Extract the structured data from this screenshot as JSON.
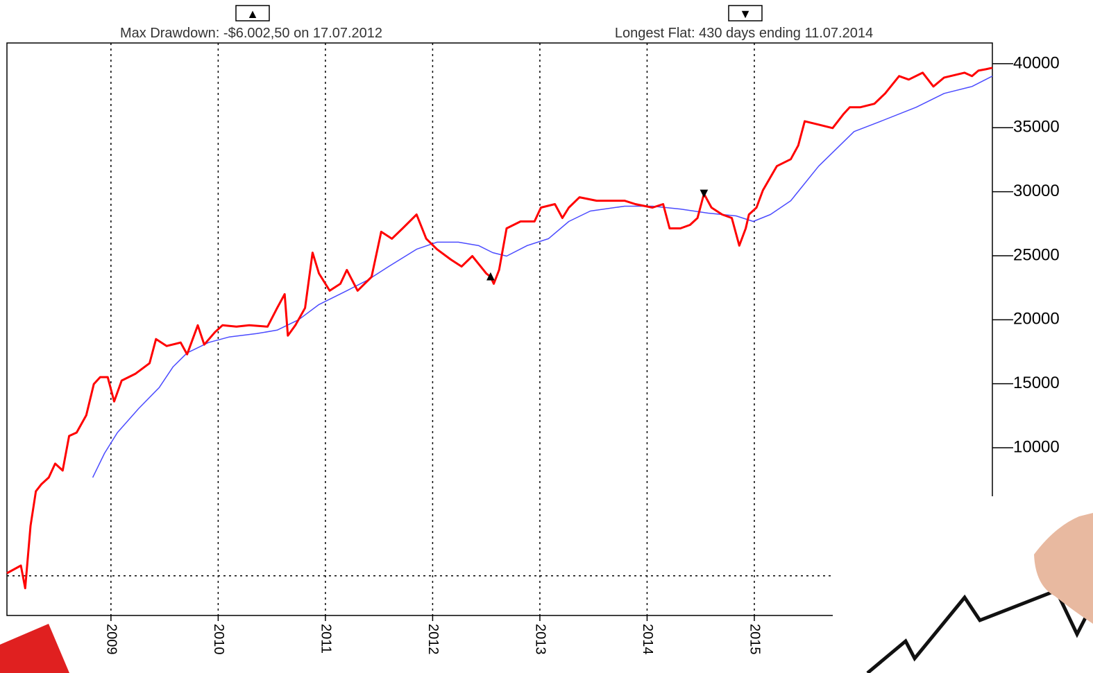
{
  "chart_data": {
    "type": "line",
    "annotations": [
      "Max Drawdown: -$6.002,50 on 17.07.2012",
      "Longest Flat: 430 days ending 11.07.2014"
    ],
    "markers": [
      {
        "symbol": "▲",
        "x": 2012.54,
        "y": 23350,
        "color": "#000000"
      },
      {
        "symbol": "▼",
        "x": 2014.53,
        "y": 29840,
        "color": "#000000"
      }
    ],
    "series": [
      {
        "color": "#ff0000",
        "width": 3,
        "x": [
          2008.03,
          2008.16,
          2008.2,
          2008.25,
          2008.3,
          2008.35,
          2008.42,
          2008.48,
          2008.55,
          2008.61,
          2008.68,
          2008.77,
          2008.84,
          2008.9,
          2008.97,
          2009.03,
          2009.1,
          2009.23,
          2009.36,
          2009.42,
          2009.52,
          2009.65,
          2009.71,
          2009.81,
          2009.87,
          2009.97,
          2010.04,
          2010.17,
          2010.29,
          2010.46,
          2010.55,
          2010.62,
          2010.65,
          2010.72,
          2010.81,
          2010.88,
          2010.94,
          2011.04,
          2011.14,
          2011.2,
          2011.3,
          2011.43,
          2011.52,
          2011.62,
          2011.72,
          2011.85,
          2011.94,
          2012.04,
          2012.17,
          2012.27,
          2012.37,
          2012.5,
          2012.54,
          2012.57,
          2012.62,
          2012.69,
          2012.82,
          2012.95,
          2013.01,
          2013.14,
          2013.21,
          2013.27,
          2013.37,
          2013.53,
          2013.79,
          2013.89,
          2014.05,
          2014.15,
          2014.21,
          2014.31,
          2014.4,
          2014.47,
          2014.53,
          2014.6,
          2014.7,
          2014.79,
          2014.86,
          2014.92,
          2014.95,
          2015.02,
          2015.08,
          2015.21,
          2015.34,
          2015.41,
          2015.47,
          2015.6,
          2015.73,
          2015.83,
          2015.89,
          2015.99,
          2016.12,
          2016.22,
          2016.35,
          2016.44,
          2016.57,
          2016.67,
          2016.77,
          2016.96,
          2017.03,
          2017.09,
          2017.16,
          2017.22
        ],
        "values": [
          200,
          800,
          -970,
          3900,
          6600,
          7140,
          7680,
          8760,
          8220,
          10920,
          11190,
          12540,
          14980,
          15520,
          15520,
          13620,
          15250,
          15790,
          16600,
          18490,
          17950,
          18220,
          17300,
          19570,
          18060,
          19030,
          19570,
          19460,
          19570,
          19460,
          20920,
          22000,
          18760,
          19570,
          20920,
          25240,
          23620,
          22270,
          22810,
          23890,
          22270,
          23350,
          26870,
          26330,
          27140,
          28220,
          26330,
          25510,
          24700,
          24160,
          24970,
          23620,
          23350,
          22810,
          23890,
          27140,
          27680,
          27680,
          28760,
          29030,
          27950,
          28760,
          29570,
          29300,
          29300,
          29030,
          28760,
          29030,
          27140,
          27140,
          27410,
          27950,
          29840,
          28760,
          28220,
          27950,
          25790,
          27140,
          28220,
          28760,
          30110,
          32000,
          32540,
          33620,
          35510,
          35240,
          34970,
          36050,
          36600,
          36600,
          36870,
          37680,
          39030,
          38760,
          39300,
          38220,
          38920,
          39300,
          39030,
          39460,
          39570,
          39680
        ]
      },
      {
        "color": "#4b4bff",
        "width": 1.5,
        "x": [
          2008.83,
          2008.94,
          2009.06,
          2009.26,
          2009.45,
          2009.58,
          2009.71,
          2009.91,
          2010.1,
          2010.36,
          2010.55,
          2010.75,
          2010.94,
          2011.2,
          2011.39,
          2011.59,
          2011.85,
          2012.04,
          2012.24,
          2012.43,
          2012.56,
          2012.69,
          2012.88,
          2013.08,
          2013.27,
          2013.47,
          2013.79,
          2014.05,
          2014.31,
          2014.57,
          2014.83,
          2014.99,
          2015.15,
          2015.34,
          2015.6,
          2015.93,
          2016.18,
          2016.51,
          2016.77,
          2017.03,
          2017.22
        ],
        "values": [
          7680,
          9570,
          11190,
          13080,
          14700,
          16330,
          17410,
          18220,
          18650,
          18920,
          19190,
          20000,
          21190,
          22270,
          23080,
          24160,
          25510,
          26060,
          26060,
          25790,
          25240,
          24970,
          25790,
          26330,
          27680,
          28490,
          28870,
          28870,
          28650,
          28330,
          28110,
          27680,
          28220,
          29300,
          32000,
          34700,
          35510,
          36600,
          37680,
          38220,
          39030
        ]
      }
    ],
    "xlim": [
      2008.03,
      2017.22
    ],
    "xticks": [
      2009,
      2010,
      2011,
      2012,
      2013,
      2014,
      2015
    ],
    "ylim": [
      -3100,
      41620
    ],
    "yticks": [
      10000,
      15000,
      20000,
      25000,
      30000,
      35000,
      40000
    ],
    "reference_line": 0,
    "grid": true
  }
}
